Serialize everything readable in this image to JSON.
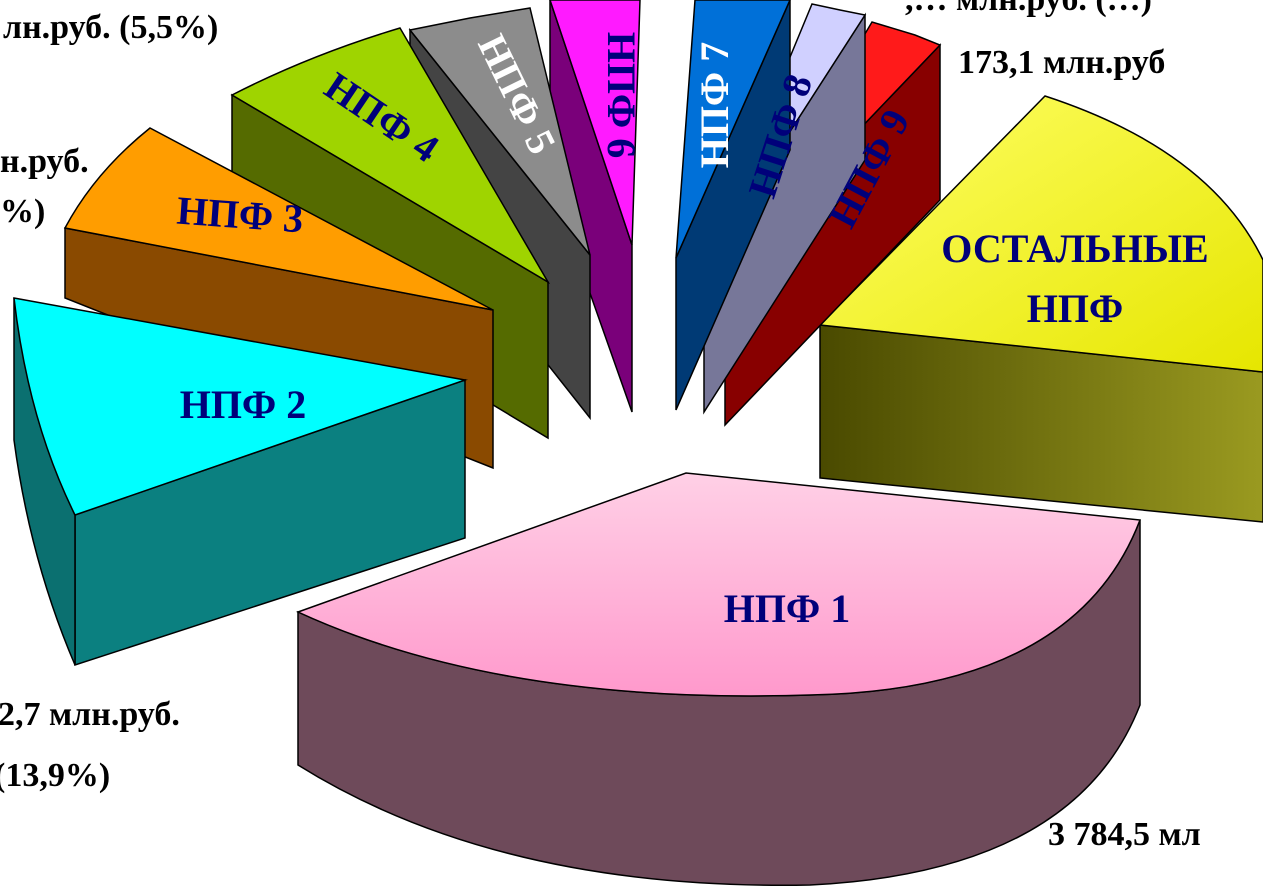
{
  "chart_data": {
    "type": "pie",
    "style": "3d-exploded",
    "slices": [
      {
        "label": "НПФ 1",
        "value_text": "3 784,5 мл",
        "color": "#ffb3d9",
        "side_color": "#6e4a5a"
      },
      {
        "label": "НПФ 2",
        "value_text": "2,7 млн.руб.",
        "pct_text": "(13,9%)",
        "color": "#00ffff",
        "side_color": "#0b8080"
      },
      {
        "label": "НПФ 3",
        "value_text": "н.руб.",
        "pct_text": "%)",
        "color": "#ff9a00",
        "side_color": "#8a4a00"
      },
      {
        "label": "НПФ 4",
        "value_text": "лн.руб. (5,5%)",
        "color": "#99cc00",
        "side_color": "#556b00"
      },
      {
        "label": "НПФ 5",
        "color": "#888888",
        "side_color": "#444444"
      },
      {
        "label": "НПФ 6",
        "color": "#ff00ff",
        "side_color": "#800080"
      },
      {
        "label": "НПФ 7",
        "color": "#0066cc",
        "side_color": "#003366"
      },
      {
        "label": "НПФ 8",
        "color": "#ccccff",
        "side_color": "#777799"
      },
      {
        "label": "НПФ 9",
        "color": "#ff0000",
        "side_color": "#880000"
      },
      {
        "label": "ОСТАЛЬНЫЕ НПФ",
        "value_text": "173,1 млн.руб",
        "color": "#ffff00",
        "side_color": "#6b6b00"
      }
    ],
    "top_edge_label": ",… млн.руб. (…)"
  }
}
